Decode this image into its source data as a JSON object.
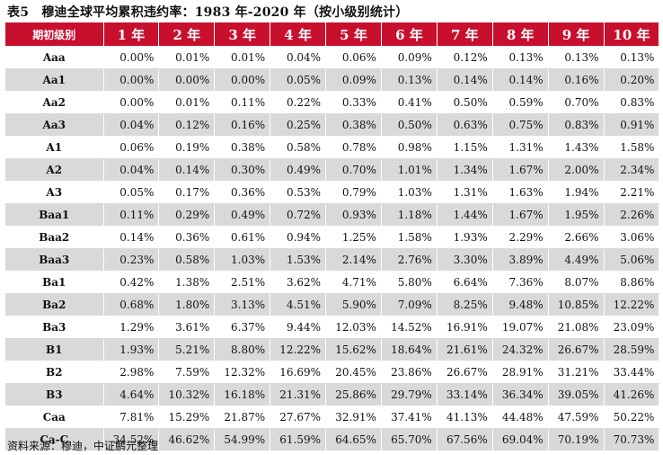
{
  "title": "表5　穆迪全球平均累积违约率：1983 年-2020 年（按小级别统计）",
  "table": {
    "headers": [
      "期初级别",
      "1 年",
      "2 年",
      "3 年",
      "4 年",
      "5 年",
      "6 年",
      "7 年",
      "8 年",
      "9 年",
      "10 年"
    ],
    "rows": [
      {
        "rating": "Aaa",
        "values": [
          "0.00%",
          "0.01%",
          "0.01%",
          "0.04%",
          "0.06%",
          "0.09%",
          "0.12%",
          "0.13%",
          "0.13%",
          "0.13%"
        ]
      },
      {
        "rating": "Aa1",
        "values": [
          "0.00%",
          "0.00%",
          "0.00%",
          "0.05%",
          "0.09%",
          "0.13%",
          "0.14%",
          "0.14%",
          "0.16%",
          "0.20%"
        ]
      },
      {
        "rating": "Aa2",
        "values": [
          "0.00%",
          "0.01%",
          "0.11%",
          "0.22%",
          "0.33%",
          "0.41%",
          "0.50%",
          "0.59%",
          "0.70%",
          "0.83%"
        ]
      },
      {
        "rating": "Aa3",
        "values": [
          "0.04%",
          "0.12%",
          "0.16%",
          "0.25%",
          "0.38%",
          "0.50%",
          "0.63%",
          "0.75%",
          "0.83%",
          "0.91%"
        ]
      },
      {
        "rating": "A1",
        "values": [
          "0.06%",
          "0.19%",
          "0.38%",
          "0.58%",
          "0.78%",
          "0.98%",
          "1.15%",
          "1.31%",
          "1.43%",
          "1.58%"
        ]
      },
      {
        "rating": "A2",
        "values": [
          "0.04%",
          "0.14%",
          "0.30%",
          "0.49%",
          "0.70%",
          "1.01%",
          "1.34%",
          "1.67%",
          "2.00%",
          "2.34%"
        ]
      },
      {
        "rating": "A3",
        "values": [
          "0.05%",
          "0.17%",
          "0.36%",
          "0.53%",
          "0.79%",
          "1.03%",
          "1.31%",
          "1.63%",
          "1.94%",
          "2.21%"
        ]
      },
      {
        "rating": "Baa1",
        "values": [
          "0.11%",
          "0.29%",
          "0.49%",
          "0.72%",
          "0.93%",
          "1.18%",
          "1.44%",
          "1.67%",
          "1.95%",
          "2.26%"
        ]
      },
      {
        "rating": "Baa2",
        "values": [
          "0.14%",
          "0.36%",
          "0.61%",
          "0.94%",
          "1.25%",
          "1.58%",
          "1.93%",
          "2.29%",
          "2.66%",
          "3.06%"
        ]
      },
      {
        "rating": "Baa3",
        "values": [
          "0.23%",
          "0.58%",
          "1.03%",
          "1.53%",
          "2.14%",
          "2.76%",
          "3.30%",
          "3.89%",
          "4.49%",
          "5.06%"
        ]
      },
      {
        "rating": "Ba1",
        "values": [
          "0.42%",
          "1.38%",
          "2.51%",
          "3.62%",
          "4.71%",
          "5.80%",
          "6.64%",
          "7.36%",
          "8.07%",
          "8.86%"
        ]
      },
      {
        "rating": "Ba2",
        "values": [
          "0.68%",
          "1.80%",
          "3.13%",
          "4.51%",
          "5.90%",
          "7.09%",
          "8.25%",
          "9.48%",
          "10.85%",
          "12.22%"
        ]
      },
      {
        "rating": "Ba3",
        "values": [
          "1.29%",
          "3.61%",
          "6.37%",
          "9.44%",
          "12.03%",
          "14.52%",
          "16.91%",
          "19.07%",
          "21.08%",
          "23.09%"
        ]
      },
      {
        "rating": "B1",
        "values": [
          "1.93%",
          "5.21%",
          "8.80%",
          "12.22%",
          "15.62%",
          "18.64%",
          "21.61%",
          "24.32%",
          "26.67%",
          "28.59%"
        ]
      },
      {
        "rating": "B2",
        "values": [
          "2.98%",
          "7.59%",
          "12.32%",
          "16.69%",
          "20.45%",
          "23.86%",
          "26.67%",
          "28.91%",
          "31.21%",
          "33.44%"
        ]
      },
      {
        "rating": "B3",
        "values": [
          "4.64%",
          "10.32%",
          "16.18%",
          "21.31%",
          "25.86%",
          "29.79%",
          "33.14%",
          "36.34%",
          "39.05%",
          "41.26%"
        ]
      },
      {
        "rating": "Caa",
        "values": [
          "7.81%",
          "15.29%",
          "21.87%",
          "27.67%",
          "32.91%",
          "37.41%",
          "41.13%",
          "44.48%",
          "47.59%",
          "50.22%"
        ]
      },
      {
        "rating": "Ca-C",
        "values": [
          "34.52%",
          "46.62%",
          "54.99%",
          "61.59%",
          "64.65%",
          "65.70%",
          "67.56%",
          "69.04%",
          "70.19%",
          "70.73%"
        ]
      }
    ]
  },
  "source": "资料来源：穆迪，中证鹏元整理",
  "colors": {
    "header_bg": "#c8102e",
    "header_text": "#ffffff",
    "shaded_row": "#d9d9d9",
    "plain_row": "#ffffff"
  }
}
